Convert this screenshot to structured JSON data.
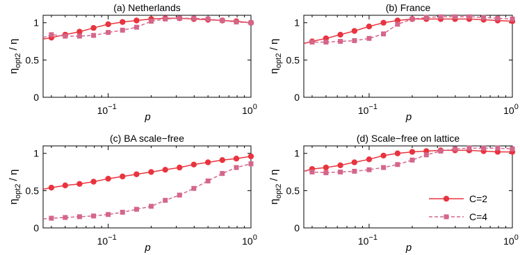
{
  "chart_data": [
    {
      "type": "line",
      "title": "(a) Netherlands",
      "xlabel": "p",
      "ylabel": "η",
      "ylabel_sub": "opt2",
      "ylabel_suffix": " / η",
      "xscale": "log",
      "xlim": [
        0.035,
        1.0
      ],
      "ylim": [
        0,
        1.1
      ],
      "yticks": [
        {
          "v": 0,
          "label": "0"
        },
        {
          "v": 0.5,
          "label": "0.5"
        },
        {
          "v": 1,
          "label": "1"
        }
      ],
      "xticks": [
        {
          "v": 0.1,
          "base": "10",
          "exp": "−1"
        },
        {
          "v": 1,
          "base": "10",
          "exp": "0"
        }
      ],
      "series": [
        {
          "style": "solid-circle",
          "x": [
            0.035,
            0.04,
            0.05,
            0.063,
            0.079,
            0.1,
            0.126,
            0.158,
            0.2,
            0.251,
            0.316,
            0.398,
            0.5,
            0.63,
            0.79,
            1.0
          ],
          "y": [
            0.78,
            0.8,
            0.84,
            0.88,
            0.93,
            0.98,
            1.01,
            1.03,
            1.05,
            1.06,
            1.06,
            1.05,
            1.04,
            1.03,
            1.02,
            1.0
          ]
        },
        {
          "style": "dashed-square",
          "x": [
            0.035,
            0.04,
            0.05,
            0.063,
            0.079,
            0.1,
            0.126,
            0.158,
            0.2,
            0.251,
            0.316,
            0.398,
            0.5,
            0.63,
            0.79,
            1.0
          ],
          "y": [
            0.8,
            0.84,
            0.82,
            0.82,
            0.83,
            0.87,
            0.9,
            0.94,
            1.02,
            1.05,
            1.06,
            1.06,
            1.05,
            1.03,
            1.01,
            1.0
          ]
        }
      ]
    },
    {
      "type": "line",
      "title": "(b) France",
      "xlabel": "p",
      "ylabel": "η",
      "ylabel_sub": "opt2",
      "ylabel_suffix": " / η",
      "xscale": "log",
      "xlim": [
        0.035,
        1.0
      ],
      "ylim": [
        0,
        1.1
      ],
      "yticks": [
        {
          "v": 0,
          "label": "0"
        },
        {
          "v": 0.5,
          "label": "0.5"
        },
        {
          "v": 1,
          "label": "1"
        }
      ],
      "xticks": [
        {
          "v": 0.1,
          "base": "10",
          "exp": "−1"
        },
        {
          "v": 1,
          "base": "10",
          "exp": "0"
        }
      ],
      "series": [
        {
          "style": "solid-circle",
          "x": [
            0.035,
            0.04,
            0.05,
            0.063,
            0.079,
            0.1,
            0.126,
            0.158,
            0.2,
            0.251,
            0.316,
            0.398,
            0.5,
            0.63,
            0.79,
            1.0
          ],
          "y": [
            0.72,
            0.75,
            0.79,
            0.84,
            0.89,
            0.95,
            1.0,
            1.03,
            1.05,
            1.05,
            1.05,
            1.05,
            1.05,
            1.04,
            1.03,
            1.02
          ]
        },
        {
          "style": "dashed-square",
          "x": [
            0.035,
            0.04,
            0.05,
            0.063,
            0.079,
            0.1,
            0.126,
            0.158,
            0.2,
            0.251,
            0.316,
            0.398,
            0.5,
            0.63,
            0.79,
            1.0
          ],
          "y": [
            0.73,
            0.74,
            0.74,
            0.75,
            0.76,
            0.79,
            0.85,
            0.98,
            1.05,
            1.07,
            1.08,
            1.08,
            1.08,
            1.07,
            1.06,
            1.05
          ]
        }
      ]
    },
    {
      "type": "line",
      "title": "(c) BA scale−free",
      "xlabel": "p",
      "ylabel": "η",
      "ylabel_sub": "opt2",
      "ylabel_suffix": " / η",
      "xscale": "log",
      "xlim": [
        0.035,
        1.0
      ],
      "ylim": [
        0,
        1.1
      ],
      "yticks": [
        {
          "v": 0,
          "label": "0"
        },
        {
          "v": 0.5,
          "label": "0.5"
        },
        {
          "v": 1,
          "label": "1"
        }
      ],
      "xticks": [
        {
          "v": 0.1,
          "base": "10",
          "exp": "−1"
        },
        {
          "v": 1,
          "base": "10",
          "exp": "0"
        }
      ],
      "series": [
        {
          "style": "solid-circle",
          "x": [
            0.035,
            0.04,
            0.05,
            0.063,
            0.079,
            0.1,
            0.126,
            0.158,
            0.2,
            0.251,
            0.316,
            0.398,
            0.5,
            0.63,
            0.79,
            1.0
          ],
          "y": [
            0.52,
            0.54,
            0.57,
            0.59,
            0.62,
            0.66,
            0.69,
            0.72,
            0.75,
            0.78,
            0.81,
            0.85,
            0.88,
            0.91,
            0.93,
            0.96
          ]
        },
        {
          "style": "dashed-square",
          "x": [
            0.035,
            0.04,
            0.05,
            0.063,
            0.079,
            0.1,
            0.126,
            0.158,
            0.2,
            0.251,
            0.316,
            0.398,
            0.5,
            0.63,
            0.79,
            1.0
          ],
          "y": [
            0.12,
            0.13,
            0.14,
            0.15,
            0.16,
            0.18,
            0.21,
            0.25,
            0.29,
            0.37,
            0.44,
            0.53,
            0.63,
            0.73,
            0.81,
            0.86
          ]
        }
      ]
    },
    {
      "type": "line",
      "title": "(d) Scale−free on lattice",
      "xlabel": "p",
      "ylabel": "η",
      "ylabel_sub": "opt2",
      "ylabel_suffix": " / η",
      "xscale": "log",
      "xlim": [
        0.035,
        1.0
      ],
      "ylim": [
        0,
        1.1
      ],
      "yticks": [
        {
          "v": 0,
          "label": "0"
        },
        {
          "v": 0.5,
          "label": "0.5"
        },
        {
          "v": 1,
          "label": "1"
        }
      ],
      "xticks": [
        {
          "v": 0.1,
          "base": "10",
          "exp": "−1"
        },
        {
          "v": 1,
          "base": "10",
          "exp": "0"
        }
      ],
      "legend": {
        "position": "lower-right",
        "entries": [
          "C=2",
          "C=4"
        ]
      },
      "series": [
        {
          "name": "C=2",
          "style": "solid-circle",
          "x": [
            0.035,
            0.04,
            0.05,
            0.063,
            0.079,
            0.1,
            0.126,
            0.158,
            0.2,
            0.251,
            0.316,
            0.398,
            0.5,
            0.63,
            0.79,
            1.0
          ],
          "y": [
            0.76,
            0.79,
            0.81,
            0.84,
            0.88,
            0.92,
            0.97,
            1.0,
            1.02,
            1.03,
            1.04,
            1.04,
            1.04,
            1.03,
            1.02,
            1.02
          ]
        },
        {
          "name": "C=4",
          "style": "dashed-square",
          "x": [
            0.035,
            0.04,
            0.05,
            0.063,
            0.079,
            0.1,
            0.126,
            0.158,
            0.2,
            0.251,
            0.316,
            0.398,
            0.5,
            0.63,
            0.79,
            1.0
          ],
          "y": [
            0.77,
            0.75,
            0.74,
            0.75,
            0.76,
            0.78,
            0.81,
            0.85,
            0.91,
            0.98,
            1.03,
            1.06,
            1.07,
            1.07,
            1.07,
            1.06
          ]
        }
      ]
    }
  ],
  "colors": {
    "solid_series": "#e8343f",
    "dashed_series": "#d4668a",
    "axis": "#000000"
  }
}
